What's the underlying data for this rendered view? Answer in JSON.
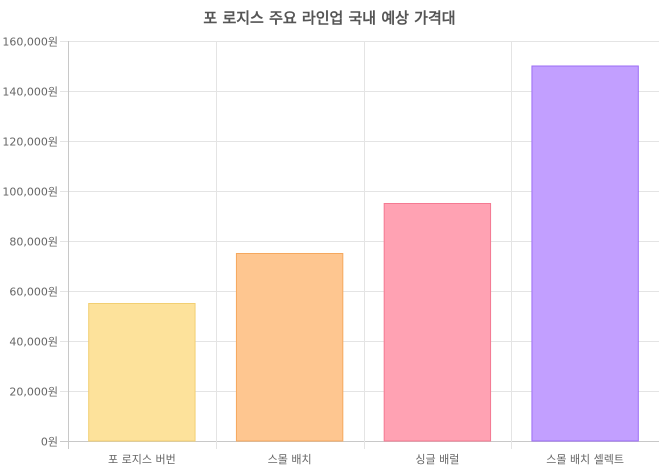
{
  "chart_data": {
    "type": "bar",
    "title": "포 로지스 주요 라인업 국내 예상 가격대",
    "categories": [
      "포 로지스 버번",
      "스몰 배치",
      "싱글 배럴",
      "스몰 배치 셀렉트"
    ],
    "values": [
      55000,
      75000,
      95000,
      150000
    ],
    "ylim": [
      0,
      160000
    ],
    "y_ticks": [
      0,
      20000,
      40000,
      60000,
      80000,
      100000,
      120000,
      140000,
      160000
    ],
    "y_tick_labels": [
      "0원",
      "20,000원",
      "40,000원",
      "60,000원",
      "80,000원",
      "100,000원",
      "120,000원",
      "140,000원",
      "160,000원"
    ],
    "xlabel": "",
    "ylabel": "",
    "grid": true,
    "legend": "none",
    "colors": {
      "fills": [
        "#fde29b",
        "#fec690",
        "#ffa2b3",
        "#c29fff"
      ],
      "strokes": [
        "#f2cf72",
        "#f5a85e",
        "#f47a92",
        "#9b6cf5"
      ]
    }
  }
}
